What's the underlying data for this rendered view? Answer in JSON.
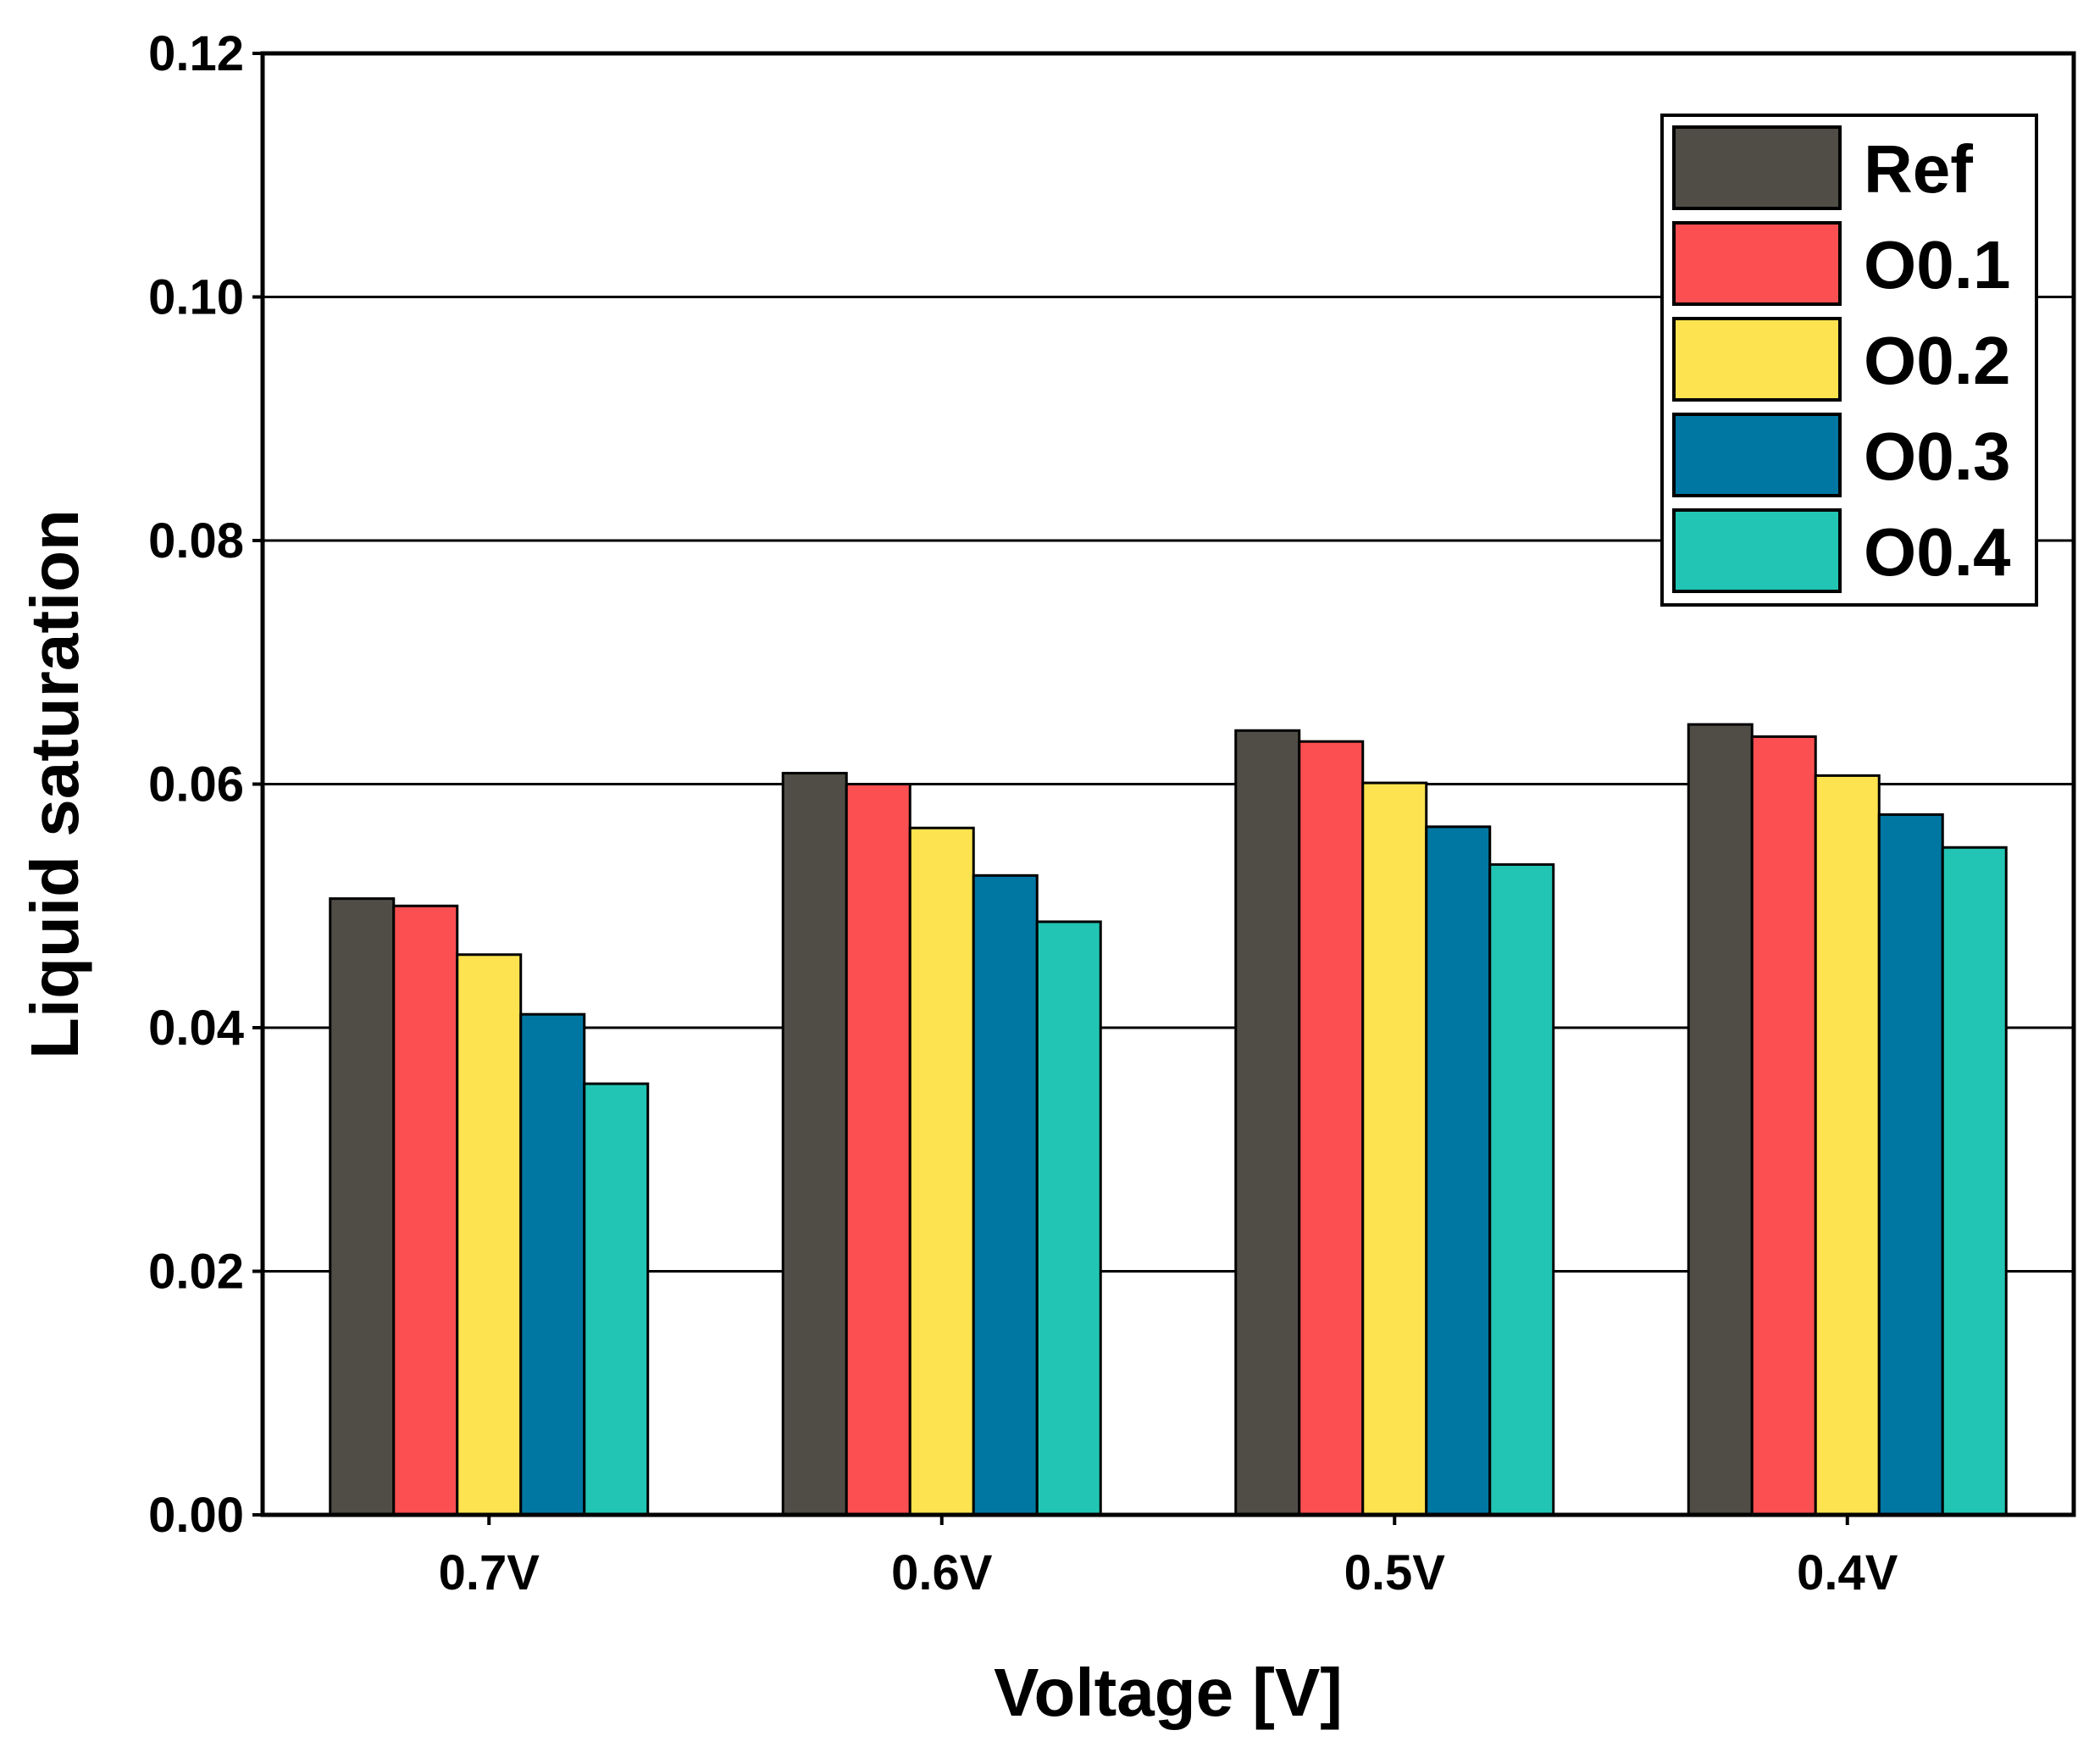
{
  "chart_data": {
    "type": "bar",
    "title": "",
    "xlabel": "Voltage [V]",
    "ylabel": "Liquid saturation",
    "ylim": [
      0,
      0.12
    ],
    "yticks": [
      "0.00",
      "0.02",
      "0.04",
      "0.06",
      "0.08",
      "0.10",
      "0.12"
    ],
    "grid": "horizontal",
    "legend_position": "top-right",
    "categories": [
      "0.7V",
      "0.6V",
      "0.5V",
      "0.4V"
    ],
    "series": [
      {
        "name": "Ref",
        "color": "#4f4d45",
        "values": [
          0.0506,
          0.0609,
          0.0644,
          0.0649
        ]
      },
      {
        "name": "O0.1",
        "color": "#fc4f51",
        "values": [
          0.05,
          0.06,
          0.0635,
          0.0639
        ]
      },
      {
        "name": "O0.2",
        "color": "#fde34f",
        "values": [
          0.046,
          0.0564,
          0.0601,
          0.0607
        ]
      },
      {
        "name": "O0.3",
        "color": "#0077a3",
        "values": [
          0.0411,
          0.0525,
          0.0565,
          0.0575
        ]
      },
      {
        "name": "O0.4",
        "color": "#22c5b4",
        "values": [
          0.0354,
          0.0487,
          0.0534,
          0.0548
        ]
      }
    ]
  }
}
